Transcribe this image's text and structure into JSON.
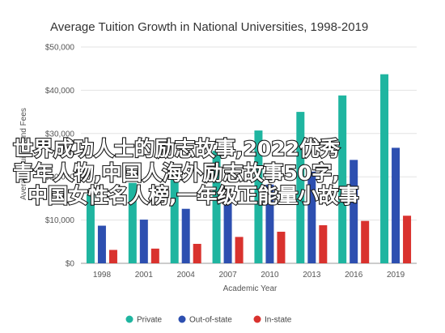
{
  "chart_data": {
    "type": "bar",
    "title": "Average Tuition Growth in National Universities, 1998-2019",
    "xlabel": "Academic Year",
    "ylabel": "Average Tuition and Fees",
    "categories": [
      "1998",
      "2001",
      "2004",
      "2007",
      "2010",
      "2013",
      "2016",
      "2019"
    ],
    "series": [
      {
        "name": "Private",
        "color": "#1fb5a0",
        "values": [
          16000,
          18600,
          21300,
          26000,
          30700,
          35000,
          38800,
          43700
        ]
      },
      {
        "name": "Out-of-state",
        "color": "#2d4fb0",
        "values": [
          8700,
          10100,
          12600,
          15000,
          18200,
          21200,
          23900,
          26700
        ]
      },
      {
        "name": "In-state",
        "color": "#d9322e",
        "values": [
          3100,
          3400,
          4500,
          6100,
          7300,
          8800,
          9800,
          11000
        ]
      }
    ],
    "y_ticks": [
      "$0",
      "$10,000",
      "$20,000",
      "$30,000",
      "$40,000",
      "$50,000"
    ],
    "ylim": [
      0,
      50000
    ],
    "grid": true,
    "legend_position": "bottom"
  },
  "overlay": {
    "lines": [
      "世界成功人士的励志故事,2022优秀",
      "青年人物,中国人海外励志故事50字,",
      "中国女性名人榜,一年级正能量小故事"
    ]
  }
}
